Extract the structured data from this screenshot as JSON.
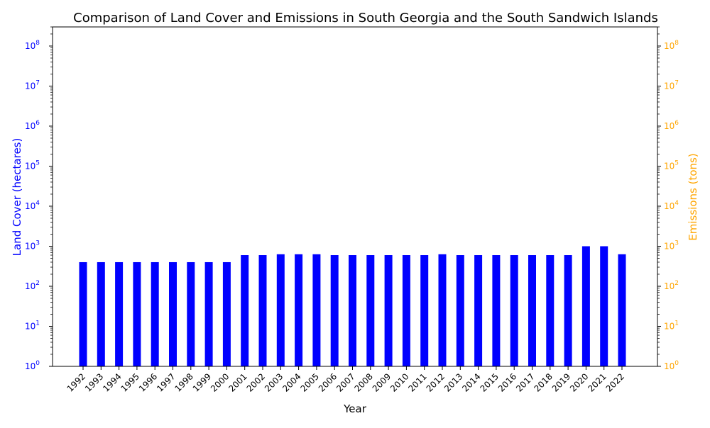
{
  "chart_data": {
    "type": "bar",
    "title": "Comparison of Land Cover and Emissions in South Georgia and the South Sandwich Islands",
    "xlabel": "Year",
    "ylabel_left": "Land Cover (hectares)",
    "ylabel_right": "Emissions (tons)",
    "y_scale": "log",
    "ylim_left": [
      1,
      300000000
    ],
    "ylim_right": [
      1,
      300000000
    ],
    "left_ticks": [
      1,
      10,
      100,
      1000,
      10000,
      100000,
      1000000,
      10000000,
      100000000
    ],
    "right_ticks": [
      1,
      10,
      100,
      1000,
      10000,
      100000,
      1000000,
      10000000,
      100000000
    ],
    "categories": [
      "1992",
      "1993",
      "1994",
      "1995",
      "1996",
      "1997",
      "1998",
      "1999",
      "2000",
      "2001",
      "2002",
      "2003",
      "2004",
      "2005",
      "2006",
      "2007",
      "2008",
      "2009",
      "2010",
      "2011",
      "2012",
      "2013",
      "2014",
      "2015",
      "2016",
      "2017",
      "2018",
      "2019",
      "2020",
      "2021",
      "2022"
    ],
    "series": [
      {
        "axis": "left",
        "color": "#0000ff",
        "values": [
          400,
          400,
          400,
          400,
          400,
          400,
          400,
          400,
          400,
          600,
          600,
          630,
          630,
          630,
          600,
          600,
          600,
          600,
          600,
          600,
          630,
          600,
          600,
          600,
          600,
          600,
          600,
          600,
          1000,
          1000,
          630
        ]
      }
    ],
    "colors": {
      "left_axis": "#0000ff",
      "right_axis": "#ffa500"
    },
    "grid": false
  }
}
